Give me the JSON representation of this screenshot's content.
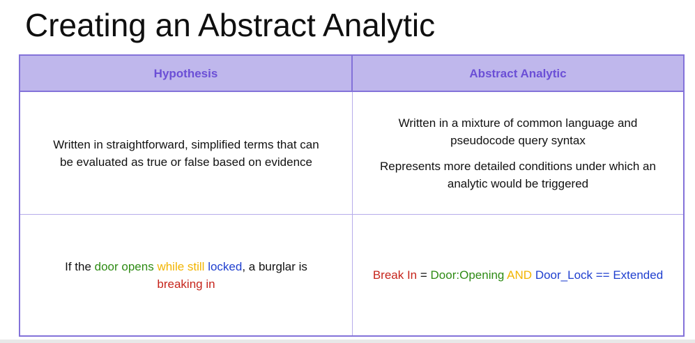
{
  "title": "Creating an Abstract Analytic",
  "table": {
    "headers": {
      "hypothesis": "Hypothesis",
      "abstract_analytic": "Abstract Analytic"
    },
    "row1": {
      "hypothesis_line1": "Written in straightforward, simplified terms that can",
      "hypothesis_line2": "be evaluated as true or false based on evidence",
      "analytic_p1_line1": "Written in a mixture of common language and",
      "analytic_p1_line2": "pseudocode query syntax",
      "analytic_p2_line1": "Represents more detailed conditions under which an",
      "analytic_p2_line2": "analytic would be triggered"
    },
    "row2": {
      "hypothesis": {
        "if_the": "If the ",
        "door_opens": "door opens",
        "while_still": "while still",
        "locked": "locked",
        "a_burglar_is": ", a burglar is",
        "breaking_in": "breaking in"
      },
      "analytic": {
        "break_in": "Break In",
        "equals": "=",
        "door_opening": "Door:Opening",
        "and": "AND",
        "door_lock": "Door_Lock == Extended"
      }
    }
  },
  "colors": {
    "border": "#8372d9",
    "header_bg": "#bfb7ec",
    "header_text": "#6b4fd6",
    "green": "#2e8b14",
    "yellow": "#f2b400",
    "blue": "#1f3fcf",
    "red": "#c6241b"
  }
}
